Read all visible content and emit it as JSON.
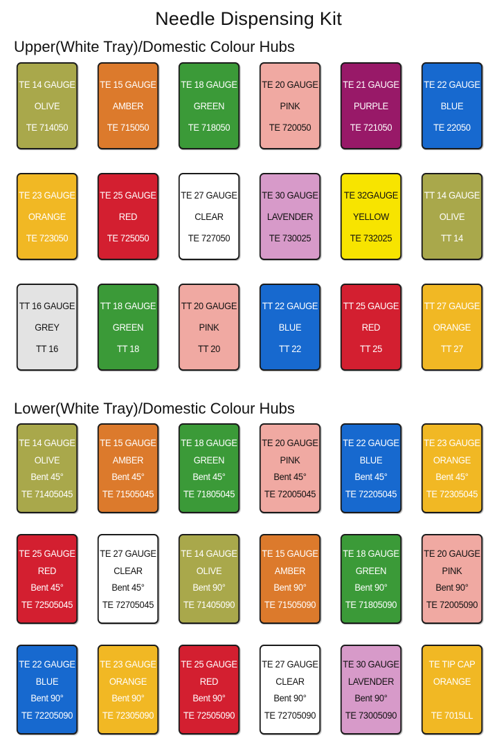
{
  "title": "Needle Dispensing Kit",
  "colors": {
    "olive": "#a9a84b",
    "amber": "#dc7a2c",
    "green": "#3b9a38",
    "pink": "#f0a9a2",
    "purple": "#981968",
    "blue": "#1769cf",
    "orange": "#f1b824",
    "red": "#d31f30",
    "clear": "#ffffff",
    "lavender": "#d79ac9",
    "yellow": "#f7e400",
    "grey": "#e3e3e3"
  },
  "sections": [
    {
      "heading": "Upper(White Tray)/Domestic Colour Hubs",
      "rows": [
        [
          {
            "color": "olive",
            "text": "#ffffff",
            "lines": [
              "TE 14 GAUGE",
              "OLIVE",
              "TE 714050"
            ]
          },
          {
            "color": "amber",
            "text": "#ffffff",
            "lines": [
              "TE 15 GAUGE",
              "AMBER",
              "TE 715050"
            ]
          },
          {
            "color": "green",
            "text": "#ffffff",
            "lines": [
              "TE 18 GAUGE",
              "GREEN",
              "TE 718050"
            ]
          },
          {
            "color": "pink",
            "text": "#111111",
            "lines": [
              "TE 20 GAUGE",
              "PINK",
              "TE 720050"
            ]
          },
          {
            "color": "purple",
            "text": "#ffffff",
            "lines": [
              "TE 21 GAUGE",
              "PURPLE",
              "TE 721050"
            ]
          },
          {
            "color": "blue",
            "text": "#ffffff",
            "lines": [
              "TE 22 GAUGE",
              "BLUE",
              "TE 22050"
            ]
          }
        ],
        [
          {
            "color": "orange",
            "text": "#ffffff",
            "lines": [
              "TE 23 GAUGE",
              "ORANGE",
              "TE 723050"
            ]
          },
          {
            "color": "red",
            "text": "#ffffff",
            "lines": [
              "TE 25 GAUGE",
              "RED",
              "TE 725050"
            ]
          },
          {
            "color": "clear",
            "text": "#111111",
            "lines": [
              "TE 27 GAUGE",
              "CLEAR",
              "TE 727050"
            ]
          },
          {
            "color": "lavender",
            "text": "#111111",
            "lines": [
              "TE 30 GAUGE",
              "LAVENDER",
              "TE 730025"
            ]
          },
          {
            "color": "yellow",
            "text": "#111111",
            "lines": [
              "TE 32GAUGE",
              "YELLOW",
              "TE 732025"
            ]
          },
          {
            "color": "olive",
            "text": "#ffffff",
            "lines": [
              "TT 14 GAUGE",
              "OLIVE",
              "TT 14"
            ]
          }
        ],
        [
          {
            "color": "grey",
            "text": "#111111",
            "lines": [
              "TT 16 GAUGE",
              "GREY",
              "TT 16"
            ]
          },
          {
            "color": "green",
            "text": "#ffffff",
            "lines": [
              "TT 18 GAUGE",
              "GREEN",
              "TT 18"
            ]
          },
          {
            "color": "pink",
            "text": "#111111",
            "lines": [
              "TT 20 GAUGE",
              "PINK",
              "TT 20"
            ]
          },
          {
            "color": "blue",
            "text": "#ffffff",
            "lines": [
              "TT 22 GAUGE",
              "BLUE",
              "TT 22"
            ]
          },
          {
            "color": "red",
            "text": "#ffffff",
            "lines": [
              "TT 25 GAUGE",
              "RED",
              "TT 25"
            ]
          },
          {
            "color": "orange",
            "text": "#ffffff",
            "lines": [
              "TT 27 GAUGE",
              "ORANGE",
              "TT 27"
            ]
          }
        ]
      ]
    },
    {
      "heading": "Lower(White Tray)/Domestic Colour Hubs",
      "rows": [
        [
          {
            "color": "olive",
            "text": "#ffffff",
            "lines": [
              "TE 14 GAUGE",
              "OLIVE",
              "Bent 45°",
              "TE 71405045"
            ]
          },
          {
            "color": "amber",
            "text": "#ffffff",
            "lines": [
              "TE 15 GAUGE",
              "AMBER",
              "Bent 45°",
              "TE 71505045"
            ]
          },
          {
            "color": "green",
            "text": "#ffffff",
            "lines": [
              "TE 18 GAUGE",
              "GREEN",
              "Bent 45°",
              "TE 71805045"
            ]
          },
          {
            "color": "pink",
            "text": "#111111",
            "lines": [
              "TE 20 GAUGE",
              "PINK",
              "Bent 45°",
              "TE 72005045"
            ]
          },
          {
            "color": "blue",
            "text": "#ffffff",
            "lines": [
              "TE 22 GAUGE",
              "BLUE",
              "Bent 45°",
              "TE 72205045"
            ]
          },
          {
            "color": "orange",
            "text": "#ffffff",
            "lines": [
              "TE 23 GAUGE",
              "ORANGE",
              "Bent 45°",
              "TE 72305045"
            ]
          }
        ],
        [
          {
            "color": "red",
            "text": "#ffffff",
            "lines": [
              "TE 25 GAUGE",
              "RED",
              "Bent 45°",
              "TE 72505045"
            ]
          },
          {
            "color": "clear",
            "text": "#111111",
            "lines": [
              "TE 27 GAUGE",
              "CLEAR",
              "Bent 45°",
              "TE 72705045"
            ]
          },
          {
            "color": "olive",
            "text": "#ffffff",
            "lines": [
              "TE 14 GAUGE",
              "OLIVE",
              "Bent 90°",
              "TE 71405090"
            ]
          },
          {
            "color": "amber",
            "text": "#ffffff",
            "lines": [
              "TE 15 GAUGE",
              "AMBER",
              "Bent 90°",
              "TE 71505090"
            ]
          },
          {
            "color": "green",
            "text": "#ffffff",
            "lines": [
              "TE 18 GAUGE",
              "GREEN",
              "Bent 90°",
              "TE 71805090"
            ]
          },
          {
            "color": "pink",
            "text": "#111111",
            "lines": [
              "TE 20 GAUGE",
              "PINK",
              "Bent 90°",
              "TE 72005090"
            ]
          }
        ],
        [
          {
            "color": "blue",
            "text": "#ffffff",
            "lines": [
              "TE 22 GAUGE",
              "BLUE",
              "Bent 90°",
              "TE 72205090"
            ]
          },
          {
            "color": "orange",
            "text": "#ffffff",
            "lines": [
              "TE 23 GAUGE",
              "ORANGE",
              "Bent 90°",
              "TE 72305090"
            ]
          },
          {
            "color": "red",
            "text": "#ffffff",
            "lines": [
              "TE 25 GAUGE",
              "RED",
              "Bent 90°",
              "TE 72505090"
            ]
          },
          {
            "color": "clear",
            "text": "#111111",
            "lines": [
              "TE 27 GAUGE",
              "CLEAR",
              "Bent 90°",
              "TE 72705090"
            ]
          },
          {
            "color": "lavender",
            "text": "#111111",
            "lines": [
              "TE 30 GAUGE",
              "LAVENDER",
              "Bent 90°",
              "TE 73005090"
            ]
          },
          {
            "color": "orange",
            "text": "#ffffff",
            "lines": [
              "TE TIP CAP",
              "ORANGE",
              "",
              "TE 7015LL"
            ]
          }
        ]
      ]
    }
  ]
}
